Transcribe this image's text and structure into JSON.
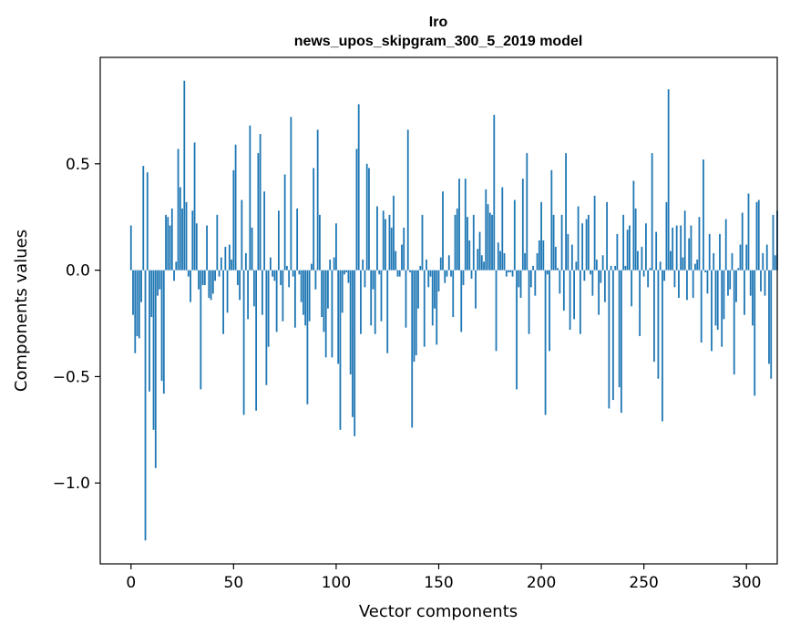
{
  "chart_data": {
    "type": "bar",
    "title": "Iro",
    "subtitle": "news_upos_skipgram_300_5_2019 model",
    "xlabel": "Vector components",
    "ylabel": "Components values",
    "xlim": [
      -15,
      315
    ],
    "ylim": [
      -1.38,
      1.0
    ],
    "xticks": [
      0,
      50,
      100,
      150,
      200,
      250,
      300
    ],
    "xtick_labels": [
      "0",
      "50",
      "100",
      "150",
      "200",
      "250",
      "300"
    ],
    "yticks": [
      -1.0,
      -0.5,
      0.0,
      0.5
    ],
    "ytick_labels": [
      "−1.0",
      "−0.5",
      "0.0",
      "0.5"
    ],
    "grid": false,
    "bar_color": "#1f77b4",
    "values": [
      0.21,
      -0.21,
      -0.39,
      -0.31,
      -0.32,
      -0.15,
      0.49,
      -1.27,
      0.46,
      -0.57,
      -0.22,
      -0.75,
      -0.93,
      -0.12,
      -0.09,
      -0.52,
      -0.58,
      0.26,
      0.25,
      0.21,
      0.29,
      -0.05,
      0.04,
      0.57,
      0.39,
      0.29,
      0.89,
      0.32,
      -0.03,
      -0.15,
      0.28,
      0.6,
      0.22,
      -0.09,
      -0.56,
      -0.07,
      -0.07,
      0.21,
      -0.13,
      -0.14,
      -0.11,
      -0.05,
      0.26,
      -0.03,
      0.06,
      -0.3,
      0.11,
      -0.2,
      0.12,
      0.05,
      0.47,
      0.59,
      -0.07,
      -0.14,
      0.33,
      -0.68,
      0.08,
      -0.23,
      0.68,
      0.2,
      -0.17,
      -0.66,
      0.55,
      0.64,
      -0.21,
      0.37,
      -0.54,
      -0.36,
      0.06,
      -0.03,
      -0.05,
      -0.29,
      0.28,
      -0.07,
      -0.24,
      0.45,
      0.02,
      -0.08,
      0.72,
      -0.03,
      -0.27,
      0.29,
      -0.02,
      -0.15,
      -0.21,
      -0.26,
      -0.63,
      -0.24,
      0.03,
      0.48,
      -0.09,
      0.66,
      0.26,
      -0.22,
      -0.29,
      -0.41,
      -0.18,
      0.05,
      -0.41,
      0.06,
      0.22,
      -0.44,
      -0.75,
      -0.2,
      -0.02,
      -0.01,
      -0.06,
      -0.49,
      -0.69,
      -0.78,
      0.57,
      0.78,
      -0.3,
      0.05,
      -0.08,
      0.5,
      0.48,
      -0.26,
      -0.09,
      -0.3,
      0.3,
      -0.02,
      -0.24,
      0.28,
      0.24,
      -0.39,
      0.26,
      0.2,
      0.35,
      0.09,
      -0.03,
      -0.03,
      0.12,
      0.2,
      -0.27,
      0.66,
      -0.01,
      -0.74,
      -0.43,
      -0.4,
      -0.18,
      0.02,
      0.26,
      -0.36,
      0.05,
      -0.08,
      -0.03,
      -0.26,
      -0.18,
      -0.35,
      -0.1,
      0.06,
      0.37,
      -0.06,
      -0.03,
      0.07,
      -0.03,
      -0.22,
      0.26,
      0.29,
      0.43,
      -0.29,
      -0.07,
      0.43,
      0.25,
      0.14,
      -0.04,
      0.26,
      -0.18,
      0.1,
      0.18,
      0.07,
      0.04,
      0.38,
      0.31,
      0.27,
      0.26,
      0.73,
      -0.38,
      0.13,
      0.09,
      0.39,
      0.08,
      -0.03,
      -0.01,
      -0.01,
      -0.03,
      0.33,
      -0.56,
      -0.08,
      -0.13,
      0.43,
      0.08,
      0.55,
      -0.3,
      -0.08,
      0.02,
      -0.12,
      0.08,
      0.14,
      0.32,
      0.14,
      -0.68,
      -0.02,
      -0.38,
      0.47,
      0.26,
      0.11,
      0.01,
      -0.11,
      0.26,
      -0.19,
      0.55,
      0.17,
      -0.28,
      0.12,
      -0.23,
      0.04,
      0.3,
      -0.3,
      0.22,
      -0.05,
      0.24,
      0.26,
      -0.02,
      -0.12,
      0.35,
      0.05,
      -0.21,
      -0.06,
      0.07,
      -0.15,
      0.32,
      -0.65,
      0.02,
      -0.61,
      0.02,
      0.17,
      -0.55,
      -0.67,
      0.26,
      0.02,
      0.19,
      0.21,
      -0.17,
      0.42,
      0.29,
      0.09,
      -0.31,
      0.11,
      -0.03,
      0.22,
      -0.08,
      0.01,
      0.55,
      -0.43,
      0.18,
      -0.51,
      0.04,
      -0.71,
      -0.05,
      0.32,
      0.85,
      0.09,
      0.2,
      -0.08,
      0.21,
      -0.13,
      0.21,
      0.06,
      0.28,
      -0.14,
      0.15,
      0.21,
      -0.13,
      0.03,
      0.05,
      0.25,
      -0.34,
      0.52,
      -0.01,
      -0.11,
      0.17,
      -0.38,
      0.08,
      -0.26,
      -0.28,
      0.17,
      -0.36,
      -0.23,
      0.24,
      -0.12,
      -0.09,
      0.08,
      -0.49,
      -0.15,
      0.01,
      0.12,
      0.27,
      -0.21,
      0.12,
      0.36,
      -0.12,
      -0.26,
      -0.59,
      0.32,
      0.33,
      -0.1,
      0.08,
      -0.12,
      0.12,
      -0.44,
      -0.51,
      0.26,
      0.07,
      0.28
    ]
  }
}
